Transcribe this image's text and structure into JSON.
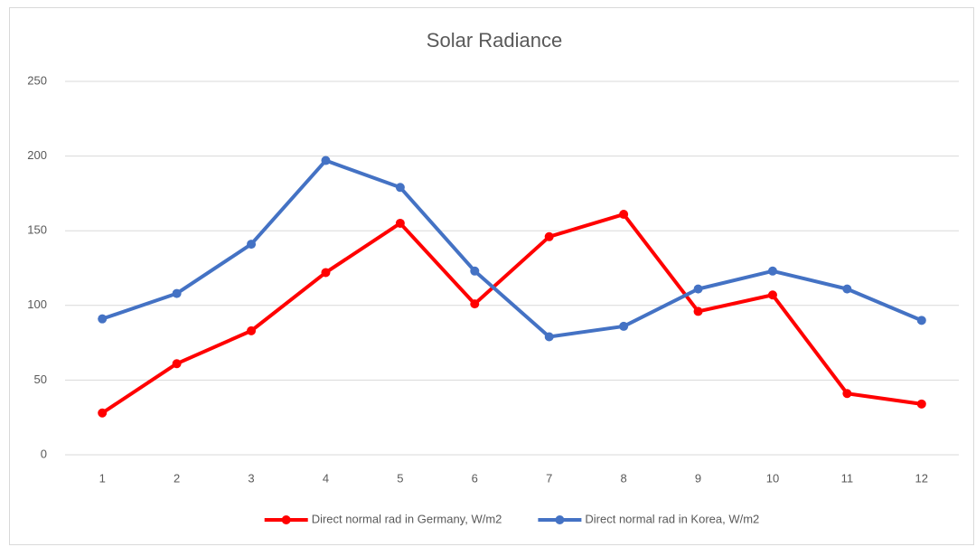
{
  "chart_data": {
    "type": "line",
    "title": "Solar Radiance",
    "categories": [
      "1",
      "2",
      "3",
      "4",
      "5",
      "6",
      "7",
      "8",
      "9",
      "10",
      "11",
      "12"
    ],
    "series": [
      {
        "name": "Direct normal rad in Germany, W/m2",
        "color": "#ff0000",
        "values": [
          28,
          61,
          83,
          122,
          155,
          101,
          146,
          161,
          96,
          107,
          41,
          34
        ]
      },
      {
        "name": "Direct normal rad in Korea, W/m2",
        "color": "#4472c4",
        "values": [
          91,
          108,
          141,
          197,
          179,
          123,
          79,
          86,
          111,
          123,
          111,
          90
        ]
      }
    ],
    "ylim": [
      0,
      250
    ],
    "yticks": [
      0,
      50,
      100,
      150,
      200,
      250
    ],
    "grid": true,
    "legend": "bottom"
  }
}
